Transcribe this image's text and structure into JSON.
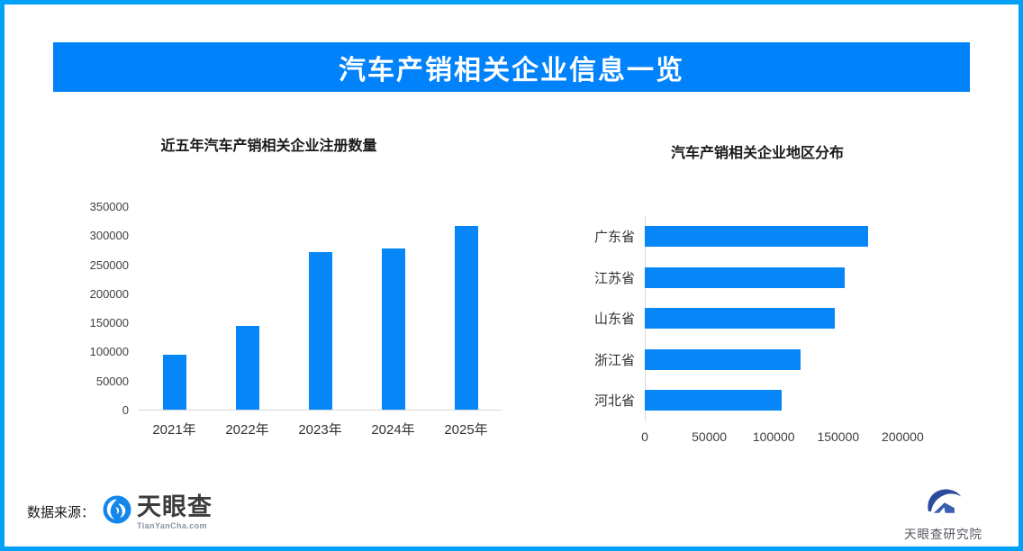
{
  "header": {
    "title": "汽车产销相关企业信息一览"
  },
  "chart_data": [
    {
      "type": "bar",
      "title": "近五年汽车产销相关企业注册数量",
      "categories": [
        "2021年",
        "2022年",
        "2023年",
        "2024年",
        "2025年"
      ],
      "values": [
        95000,
        145000,
        273000,
        278000,
        318000
      ],
      "ylim": [
        0,
        350000
      ],
      "yticks": [
        0,
        50000,
        100000,
        150000,
        200000,
        250000,
        300000,
        350000
      ],
      "xlabel": "",
      "ylabel": "",
      "grid": false,
      "legend": "none"
    },
    {
      "type": "bar-horizontal",
      "title": "汽车产销相关企业地区分布",
      "categories": [
        "广东省",
        "江苏省",
        "山东省",
        "浙江省",
        "河北省"
      ],
      "values": [
        173000,
        155000,
        147000,
        121000,
        106000
      ],
      "xticks": [
        0,
        50000,
        100000,
        150000,
        200000
      ],
      "xlim": [
        0,
        250000
      ],
      "xlabel": "",
      "ylabel": "",
      "grid": false,
      "legend": "none"
    }
  ],
  "footer": {
    "source_label": "数据来源：",
    "logo_text": "天眼查",
    "logo_subtext": "TianYanCha.com",
    "institute": "天眼查研究院"
  },
  "colors": {
    "frame": "#00A1F7",
    "banner": "#0082FB",
    "bar": "#0786F7",
    "title_text": "#1A1A1A",
    "axis_text": "#404040",
    "category_text": "#333333",
    "line": "#D9D9D9",
    "source_text": "#1A1A1A",
    "logo_text": "#3C3C3C",
    "logo_sub_text": "#8A94A6",
    "institute_text": "#53565D",
    "tyc_blue": "#1286EC",
    "institute_navy": "#2B4C9C",
    "institute_blue": "#3A5FAE"
  }
}
